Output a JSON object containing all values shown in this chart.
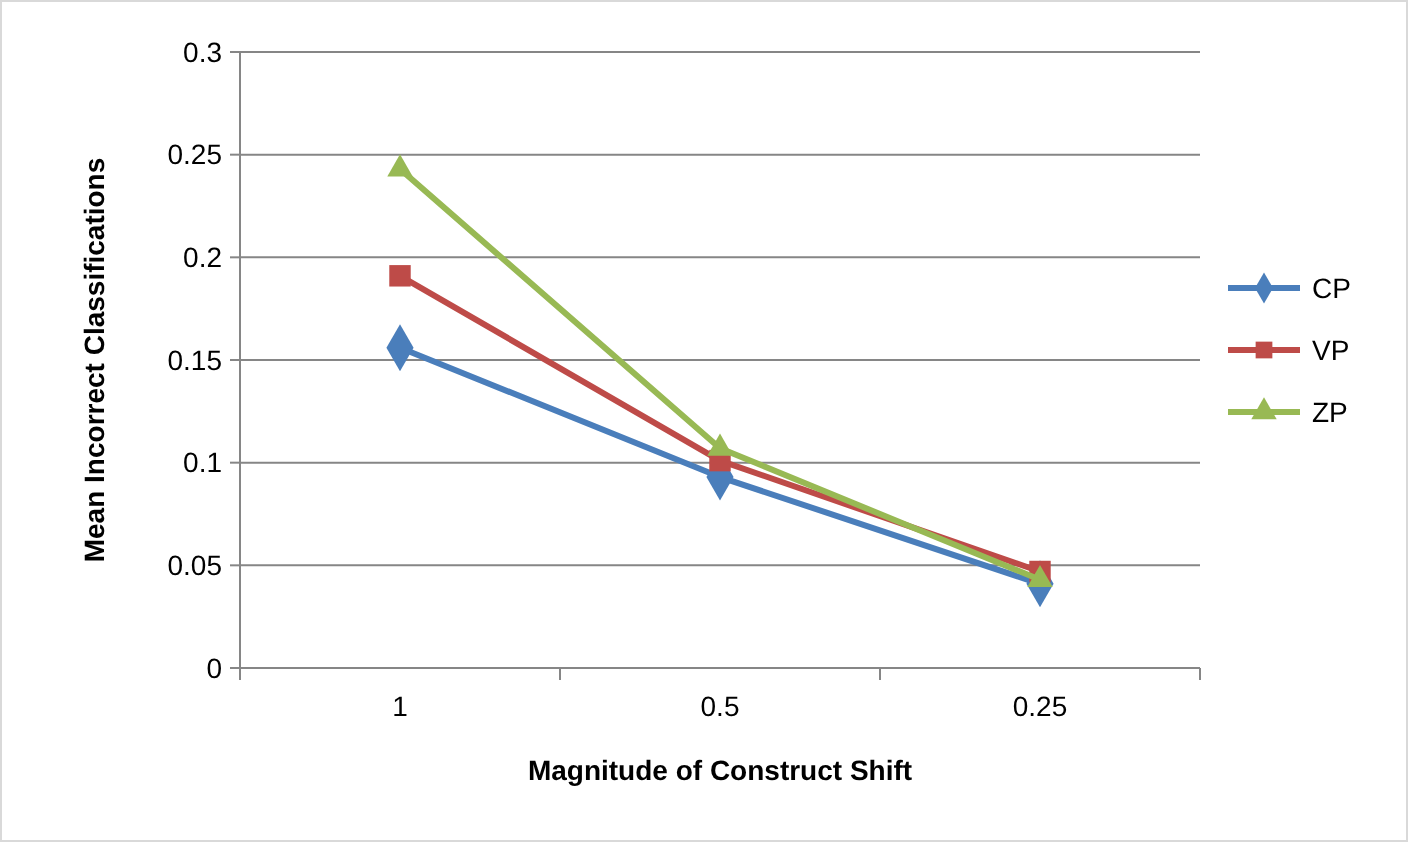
{
  "chart_data": {
    "type": "line",
    "xlabel": "Magnitude of Construct Shift",
    "ylabel": "Mean Incorrect Classifications",
    "categories": [
      "1",
      "0.5",
      "0.25"
    ],
    "series": [
      {
        "name": "CP",
        "color": "#4a7ebb",
        "values": [
          0.156,
          0.093,
          0.041
        ],
        "marker": "diamond"
      },
      {
        "name": "VP",
        "color": "#be4b48",
        "values": [
          0.191,
          0.101,
          0.047
        ],
        "marker": "square"
      },
      {
        "name": "ZP",
        "color": "#98b954",
        "values": [
          0.243,
          0.107,
          0.043
        ],
        "marker": "triangle"
      }
    ],
    "ylim": [
      0,
      0.3
    ],
    "yticks": [
      0,
      0.05,
      0.1,
      0.15,
      0.2,
      0.25,
      0.3
    ],
    "grid": "y",
    "legend": "right",
    "line_style": "solid"
  }
}
